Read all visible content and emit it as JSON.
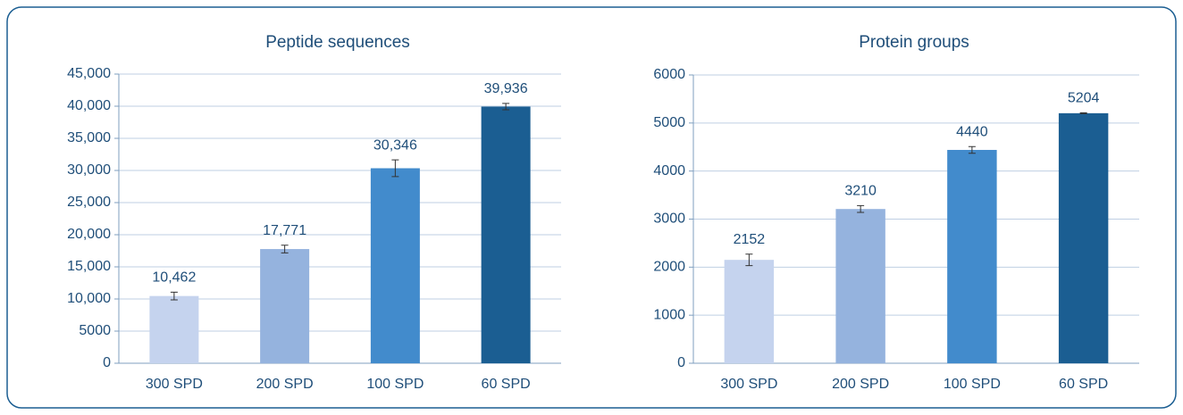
{
  "chart_data": [
    {
      "type": "bar",
      "title": "Peptide sequences",
      "categories": [
        "300 SPD",
        "200 SPD",
        "100 SPD",
        "60 SPD"
      ],
      "values": [
        10462,
        17771,
        30346,
        39936
      ],
      "value_labels": [
        "10,462",
        "17,771",
        "30,346",
        "39,936"
      ],
      "errors": [
        600,
        600,
        1300,
        500
      ],
      "colors": [
        "#c5d3ee",
        "#95b3de",
        "#428bcc",
        "#1b5e92"
      ],
      "ylim": [
        0,
        45000
      ],
      "yticks": [
        0,
        5000,
        {
          "value": 10000,
          "label": "10,000"
        },
        {
          "value": 15000,
          "label": "15,000"
        },
        {
          "value": 20000,
          "label": "20,000"
        },
        {
          "value": 25000,
          "label": "25,000"
        },
        {
          "value": 30000,
          "label": "30,000"
        },
        {
          "value": 35000,
          "label": "35,000"
        },
        {
          "value": 40000,
          "label": "40,000"
        },
        {
          "value": 45000,
          "label": "45,000"
        }
      ],
      "grid": true
    },
    {
      "type": "bar",
      "title": "Protein groups",
      "categories": [
        "300 SPD",
        "200 SPD",
        "100 SPD",
        "60 SPD"
      ],
      "values": [
        2152,
        3210,
        4440,
        5204
      ],
      "errors": [
        120,
        70,
        70,
        10
      ],
      "colors": [
        "#c5d3ee",
        "#95b3de",
        "#428bcc",
        "#1b5e92"
      ],
      "ylim": [
        0,
        6000
      ],
      "yticks": [
        0,
        1000,
        2000,
        3000,
        4000,
        5000,
        6000
      ],
      "grid": true
    }
  ]
}
